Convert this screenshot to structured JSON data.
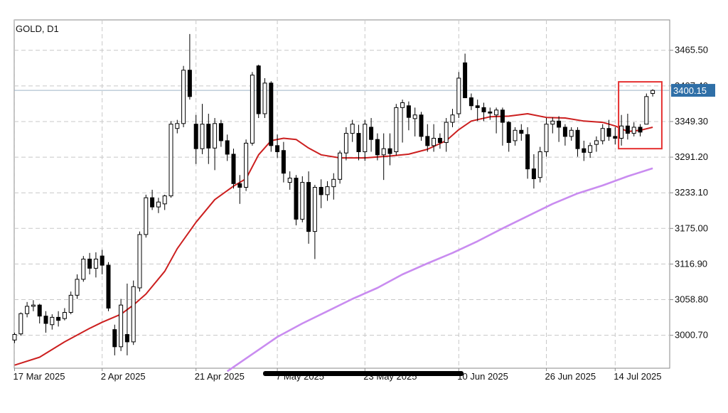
{
  "chart_data": {
    "type": "candlestick",
    "title": "GOLD, D1",
    "x_tick_labels": [
      "17 Mar 2025",
      "2 Apr 2025",
      "21 Apr 2025",
      "7 May 2025",
      "23 May 2025",
      "10 Jun 2025",
      "26 Jun 2025",
      "14 Jul 2025"
    ],
    "x_tick_bar_index": [
      0,
      14,
      29,
      42,
      56,
      71,
      85,
      96
    ],
    "y_tick_labels": [
      "3465.50",
      "3407.40",
      "3349.30",
      "3291.20",
      "3233.10",
      "3175.00",
      "3116.90",
      "3058.80",
      "3000.70"
    ],
    "y_ticks": [
      3465.5,
      3407.4,
      3349.3,
      3291.2,
      3233.1,
      3175.0,
      3116.9,
      3058.8,
      3000.7
    ],
    "ylim": [
      2947.0,
      3515.0
    ],
    "current_price": 3400.15,
    "current_price_label": "3400.15",
    "grid": true,
    "ohlc": [
      [
        2993,
        3005,
        2988,
        3002
      ],
      [
        3003,
        3038,
        3000,
        3036
      ],
      [
        3036,
        3055,
        3030,
        3048
      ],
      [
        3048,
        3058,
        3040,
        3050
      ],
      [
        3050,
        3052,
        3020,
        3032
      ],
      [
        3032,
        3040,
        3005,
        3020
      ],
      [
        3018,
        3035,
        3010,
        3030
      ],
      [
        3030,
        3040,
        3015,
        3025
      ],
      [
        3028,
        3045,
        3025,
        3038
      ],
      [
        3038,
        3072,
        3035,
        3066
      ],
      [
        3066,
        3100,
        3060,
        3092
      ],
      [
        3092,
        3130,
        3088,
        3125
      ],
      [
        3125,
        3135,
        3100,
        3110
      ],
      [
        3110,
        3136,
        3095,
        3125
      ],
      [
        3130,
        3140,
        3100,
        3115
      ],
      [
        3115,
        3120,
        3040,
        3045
      ],
      [
        3010,
        3018,
        2968,
        2982
      ],
      [
        2982,
        3060,
        2975,
        3050
      ],
      [
        3002,
        3085,
        2968,
        2990
      ],
      [
        2990,
        3090,
        2985,
        3080
      ],
      [
        3078,
        3170,
        3072,
        3165
      ],
      [
        3165,
        3230,
        3160,
        3225
      ],
      [
        3225,
        3238,
        3205,
        3210
      ],
      [
        3210,
        3225,
        3200,
        3218
      ],
      [
        3215,
        3230,
        3205,
        3228
      ],
      [
        3228,
        3350,
        3225,
        3345
      ],
      [
        3338,
        3352,
        3330,
        3346
      ],
      [
        3346,
        3440,
        3340,
        3433
      ],
      [
        3433,
        3492,
        3385,
        3390
      ],
      [
        3345,
        3360,
        3280,
        3305
      ],
      [
        3305,
        3378,
        3296,
        3345
      ],
      [
        3345,
        3362,
        3280,
        3306
      ],
      [
        3306,
        3355,
        3270,
        3346
      ],
      [
        3346,
        3352,
        3308,
        3318
      ],
      [
        3318,
        3328,
        3285,
        3296
      ],
      [
        3296,
        3305,
        3240,
        3248
      ],
      [
        3248,
        3262,
        3215,
        3242
      ],
      [
        3242,
        3320,
        3236,
        3314
      ],
      [
        3314,
        3430,
        3310,
        3425
      ],
      [
        3440,
        3442,
        3355,
        3362
      ],
      [
        3362,
        3420,
        3355,
        3412
      ],
      [
        3412,
        3415,
        3300,
        3310
      ],
      [
        3310,
        3328,
        3290,
        3300
      ],
      [
        3302,
        3316,
        3250,
        3265
      ],
      [
        3250,
        3268,
        3238,
        3257
      ],
      [
        3257,
        3262,
        3180,
        3190
      ],
      [
        3190,
        3260,
        3185,
        3250
      ],
      [
        3250,
        3268,
        3150,
        3170
      ],
      [
        3170,
        3246,
        3125,
        3242
      ],
      [
        3242,
        3255,
        3208,
        3230
      ],
      [
        3230,
        3252,
        3220,
        3243
      ],
      [
        3243,
        3265,
        3222,
        3255
      ],
      [
        3255,
        3302,
        3248,
        3298
      ],
      [
        3298,
        3340,
        3286,
        3330
      ],
      [
        3330,
        3352,
        3316,
        3345
      ],
      [
        3330,
        3344,
        3286,
        3300
      ],
      [
        3300,
        3352,
        3285,
        3345
      ],
      [
        3340,
        3355,
        3300,
        3320
      ],
      [
        3320,
        3330,
        3286,
        3295
      ],
      [
        3295,
        3330,
        3254,
        3305
      ],
      [
        3305,
        3330,
        3278,
        3297
      ],
      [
        3300,
        3378,
        3294,
        3372
      ],
      [
        3372,
        3385,
        3315,
        3380
      ],
      [
        3375,
        3382,
        3335,
        3356
      ],
      [
        3354,
        3372,
        3325,
        3360
      ],
      [
        3360,
        3365,
        3318,
        3325
      ],
      [
        3325,
        3345,
        3300,
        3310
      ],
      [
        3310,
        3345,
        3300,
        3322
      ],
      [
        3322,
        3330,
        3305,
        3315
      ],
      [
        3315,
        3355,
        3300,
        3348
      ],
      [
        3348,
        3370,
        3340,
        3360
      ],
      [
        3362,
        3430,
        3355,
        3420
      ],
      [
        3445,
        3460,
        3390,
        3388
      ],
      [
        3388,
        3395,
        3368,
        3375
      ],
      [
        3375,
        3385,
        3350,
        3372
      ],
      [
        3372,
        3380,
        3350,
        3365
      ],
      [
        3365,
        3372,
        3352,
        3363
      ],
      [
        3360,
        3372,
        3330,
        3368
      ],
      [
        3368,
        3372,
        3310,
        3348
      ],
      [
        3348,
        3350,
        3300,
        3315
      ],
      [
        3318,
        3340,
        3310,
        3335
      ],
      [
        3335,
        3345,
        3318,
        3330
      ],
      [
        3328,
        3340,
        3256,
        3272
      ],
      [
        3272,
        3296,
        3240,
        3256
      ],
      [
        3258,
        3308,
        3250,
        3300
      ],
      [
        3300,
        3355,
        3292,
        3345
      ],
      [
        3345,
        3356,
        3330,
        3350
      ],
      [
        3350,
        3358,
        3316,
        3340
      ],
      [
        3340,
        3345,
        3310,
        3325
      ],
      [
        3325,
        3340,
        3318,
        3335
      ],
      [
        3335,
        3340,
        3292,
        3305
      ],
      [
        3305,
        3318,
        3285,
        3299
      ],
      [
        3299,
        3315,
        3290,
        3310
      ],
      [
        3312,
        3325,
        3300,
        3318
      ],
      [
        3318,
        3345,
        3312,
        3338
      ],
      [
        3338,
        3352,
        3318,
        3325
      ],
      [
        3325,
        3340,
        3312,
        3322
      ],
      [
        3322,
        3360,
        3310,
        3342
      ],
      [
        3342,
        3362,
        3320,
        3330
      ],
      [
        3330,
        3348,
        3325,
        3340
      ],
      [
        3340,
        3345,
        3325,
        3332
      ],
      [
        3345,
        3395,
        3345,
        3390
      ],
      [
        3395,
        3402,
        3390,
        3400
      ]
    ],
    "ma_fast": [
      [
        0,
        2952
      ],
      [
        4,
        2965
      ],
      [
        8,
        2990
      ],
      [
        12,
        3012
      ],
      [
        14,
        3022
      ],
      [
        17,
        3035
      ],
      [
        19,
        3050
      ],
      [
        21,
        3068
      ],
      [
        24,
        3105
      ],
      [
        26,
        3142
      ],
      [
        29,
        3185
      ],
      [
        32,
        3222
      ],
      [
        35,
        3244
      ],
      [
        37,
        3256
      ],
      [
        39,
        3295
      ],
      [
        41,
        3318
      ],
      [
        43,
        3322
      ],
      [
        45,
        3320
      ],
      [
        47,
        3306
      ],
      [
        49,
        3295
      ],
      [
        52,
        3290
      ],
      [
        56,
        3290
      ],
      [
        60,
        3293
      ],
      [
        63,
        3296
      ],
      [
        66,
        3304
      ],
      [
        69,
        3318
      ],
      [
        71,
        3336
      ],
      [
        73,
        3350
      ],
      [
        76,
        3357
      ],
      [
        79,
        3358
      ],
      [
        82,
        3362
      ],
      [
        85,
        3356
      ],
      [
        88,
        3355
      ],
      [
        91,
        3350
      ],
      [
        94,
        3348
      ],
      [
        96,
        3342
      ],
      [
        98,
        3333
      ],
      [
        100,
        3335
      ],
      [
        102,
        3340
      ]
    ],
    "ma_slow": [
      [
        34,
        2942
      ],
      [
        38,
        2970
      ],
      [
        42,
        2998
      ],
      [
        46,
        3020
      ],
      [
        50,
        3040
      ],
      [
        54,
        3060
      ],
      [
        58,
        3078
      ],
      [
        62,
        3100
      ],
      [
        66,
        3118
      ],
      [
        70,
        3135
      ],
      [
        74,
        3154
      ],
      [
        78,
        3175
      ],
      [
        82,
        3195
      ],
      [
        86,
        3215
      ],
      [
        90,
        3232
      ],
      [
        94,
        3245
      ],
      [
        98,
        3260
      ],
      [
        102,
        3273
      ]
    ],
    "annotation_box": {
      "bar_start": 97,
      "bar_end": 103,
      "price_top": 3414,
      "price_bottom": 3305
    }
  }
}
